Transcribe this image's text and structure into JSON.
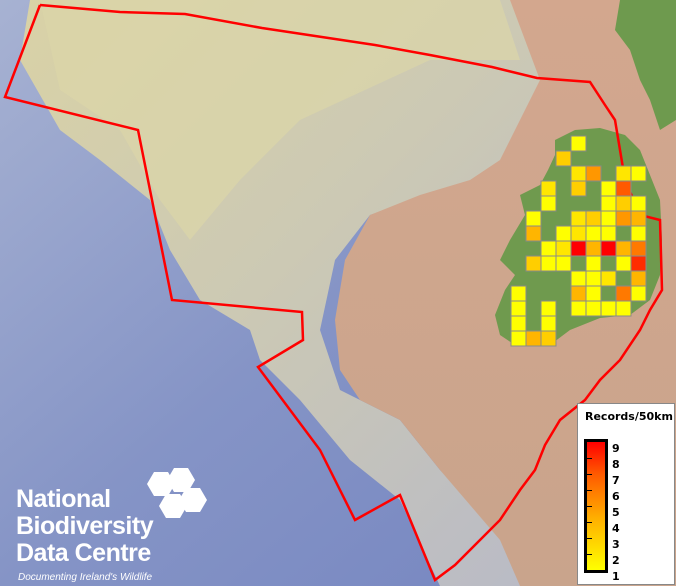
{
  "map": {
    "boundary_color": "#ff0000",
    "grid_cells": [
      {
        "col": 4,
        "row": 0,
        "value": 1
      },
      {
        "col": 3,
        "row": 1,
        "value": 3
      },
      {
        "col": 4,
        "row": 2,
        "value": 2
      },
      {
        "col": 5,
        "row": 2,
        "value": 5
      },
      {
        "col": 7,
        "row": 2,
        "value": 2
      },
      {
        "col": 8,
        "row": 2,
        "value": 1
      },
      {
        "col": 2,
        "row": 3,
        "value": 2
      },
      {
        "col": 4,
        "row": 3,
        "value": 3
      },
      {
        "col": 6,
        "row": 3,
        "value": 1
      },
      {
        "col": 7,
        "row": 3,
        "value": 7
      },
      {
        "col": 2,
        "row": 4,
        "value": 1
      },
      {
        "col": 6,
        "row": 4,
        "value": 1
      },
      {
        "col": 7,
        "row": 4,
        "value": 3
      },
      {
        "col": 8,
        "row": 4,
        "value": 1
      },
      {
        "col": 1,
        "row": 5,
        "value": 1
      },
      {
        "col": 4,
        "row": 5,
        "value": 2
      },
      {
        "col": 5,
        "row": 5,
        "value": 3
      },
      {
        "col": 6,
        "row": 5,
        "value": 1
      },
      {
        "col": 7,
        "row": 5,
        "value": 5
      },
      {
        "col": 8,
        "row": 5,
        "value": 4
      },
      {
        "col": 1,
        "row": 6,
        "value": 4
      },
      {
        "col": 3,
        "row": 6,
        "value": 1
      },
      {
        "col": 4,
        "row": 6,
        "value": 2
      },
      {
        "col": 5,
        "row": 6,
        "value": 1
      },
      {
        "col": 6,
        "row": 6,
        "value": 1
      },
      {
        "col": 8,
        "row": 6,
        "value": 1
      },
      {
        "col": 2,
        "row": 7,
        "value": 1
      },
      {
        "col": 3,
        "row": 7,
        "value": 2
      },
      {
        "col": 4,
        "row": 7,
        "value": 9
      },
      {
        "col": 5,
        "row": 7,
        "value": 4
      },
      {
        "col": 6,
        "row": 7,
        "value": 9
      },
      {
        "col": 7,
        "row": 7,
        "value": 4
      },
      {
        "col": 8,
        "row": 7,
        "value": 6
      },
      {
        "col": 1,
        "row": 8,
        "value": 3
      },
      {
        "col": 2,
        "row": 8,
        "value": 1
      },
      {
        "col": 3,
        "row": 8,
        "value": 1
      },
      {
        "col": 5,
        "row": 8,
        "value": 1
      },
      {
        "col": 7,
        "row": 8,
        "value": 1
      },
      {
        "col": 8,
        "row": 8,
        "value": 8
      },
      {
        "col": 4,
        "row": 9,
        "value": 1
      },
      {
        "col": 5,
        "row": 9,
        "value": 1
      },
      {
        "col": 6,
        "row": 9,
        "value": 2
      },
      {
        "col": 8,
        "row": 9,
        "value": 4
      },
      {
        "col": 0,
        "row": 10,
        "value": 1
      },
      {
        "col": 4,
        "row": 10,
        "value": 4
      },
      {
        "col": 5,
        "row": 10,
        "value": 1
      },
      {
        "col": 7,
        "row": 10,
        "value": 6
      },
      {
        "col": 8,
        "row": 10,
        "value": 1
      },
      {
        "col": 0,
        "row": 11,
        "value": 1
      },
      {
        "col": 2,
        "row": 11,
        "value": 1
      },
      {
        "col": 4,
        "row": 11,
        "value": 1
      },
      {
        "col": 5,
        "row": 11,
        "value": 1
      },
      {
        "col": 6,
        "row": 11,
        "value": 1
      },
      {
        "col": 7,
        "row": 11,
        "value": 1
      },
      {
        "col": 0,
        "row": 12,
        "value": 1
      },
      {
        "col": 2,
        "row": 12,
        "value": 1
      },
      {
        "col": 0,
        "row": 13,
        "value": 1
      },
      {
        "col": 1,
        "row": 13,
        "value": 4
      },
      {
        "col": 2,
        "row": 13,
        "value": 3
      }
    ]
  },
  "legend": {
    "title": "Records/50km",
    "labels": [
      "9",
      "8",
      "7",
      "6",
      "5",
      "4",
      "3",
      "2",
      "1"
    ],
    "min_color": "#ffff00",
    "max_color": "#ff0000"
  },
  "logo": {
    "line1": "National",
    "line2": "Biodiversity",
    "line3": "Data Centre",
    "tagline": "Documenting Ireland's Wildlife"
  }
}
